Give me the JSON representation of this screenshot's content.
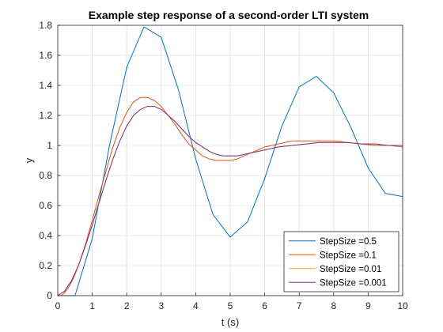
{
  "chart_data": {
    "type": "line",
    "title": "Example step response of a second-order LTI system",
    "xlabel": "t (s)",
    "ylabel": "y",
    "xlim": [
      0,
      10
    ],
    "ylim": [
      0,
      1.8
    ],
    "xticks": [
      "0",
      "1",
      "2",
      "3",
      "4",
      "5",
      "6",
      "7",
      "8",
      "9",
      "10"
    ],
    "yticks": [
      "0",
      "0.2",
      "0.4",
      "0.6",
      "0.8",
      "1",
      "1.2",
      "1.4",
      "1.6",
      "1.8"
    ],
    "grid": true,
    "legend_position": "bottom-right",
    "series": [
      {
        "name": "StepSize =0.5",
        "color": "#0072BD",
        "x": [
          0,
          0.5,
          1,
          1.5,
          2,
          2.5,
          3,
          3.5,
          4,
          4.5,
          5,
          5.5,
          6,
          6.5,
          7,
          7.5,
          8,
          8.5,
          9,
          9.5,
          10
        ],
        "y": [
          0,
          0,
          0.38,
          1.0,
          1.52,
          1.79,
          1.72,
          1.37,
          0.91,
          0.54,
          0.39,
          0.49,
          0.78,
          1.13,
          1.39,
          1.46,
          1.35,
          1.12,
          0.85,
          0.68,
          0.66
        ]
      },
      {
        "name": "StepSize =0.1",
        "color": "#D95319",
        "x": [
          0,
          0.1,
          0.2,
          0.3,
          0.4,
          0.5,
          0.6,
          0.7,
          0.8,
          0.9,
          1.0,
          1.2,
          1.4,
          1.6,
          1.8,
          2.0,
          2.2,
          2.4,
          2.6,
          2.8,
          3.0,
          3.2,
          3.4,
          3.6,
          3.8,
          4.0,
          4.2,
          4.4,
          4.6,
          4.8,
          5.0,
          5.2,
          5.4,
          5.6,
          5.8,
          6.0,
          6.4,
          6.8,
          7.2,
          7.6,
          8.0,
          8.4,
          8.8,
          9.2,
          9.6,
          10.0
        ],
        "y": [
          0,
          0,
          0.02,
          0.05,
          0.09,
          0.14,
          0.2,
          0.27,
          0.34,
          0.42,
          0.5,
          0.67,
          0.83,
          0.99,
          1.12,
          1.22,
          1.29,
          1.32,
          1.32,
          1.3,
          1.26,
          1.2,
          1.14,
          1.07,
          1.01,
          0.97,
          0.93,
          0.91,
          0.9,
          0.9,
          0.9,
          0.91,
          0.93,
          0.95,
          0.97,
          0.99,
          1.01,
          1.03,
          1.03,
          1.03,
          1.03,
          1.02,
          1.01,
          1.0,
          1.0,
          0.99
        ]
      },
      {
        "name": "StepSize =0.01",
        "color": "#EDB120",
        "x": [
          0,
          0.2,
          0.4,
          0.6,
          0.8,
          1.0,
          1.2,
          1.4,
          1.6,
          1.8,
          2.0,
          2.2,
          2.4,
          2.6,
          2.8,
          3.0,
          3.2,
          3.4,
          3.6,
          3.8,
          4.0,
          4.2,
          4.4,
          4.6,
          4.8,
          5.0,
          5.2,
          5.4,
          5.6,
          5.8,
          6.0,
          6.4,
          6.8,
          7.2,
          7.6,
          8.0,
          8.4,
          8.8,
          9.2,
          9.6,
          10.0
        ],
        "y": [
          0,
          0.03,
          0.1,
          0.2,
          0.33,
          0.47,
          0.62,
          0.77,
          0.91,
          1.03,
          1.13,
          1.2,
          1.24,
          1.26,
          1.26,
          1.24,
          1.2,
          1.16,
          1.11,
          1.06,
          1.02,
          0.99,
          0.96,
          0.94,
          0.93,
          0.93,
          0.93,
          0.94,
          0.95,
          0.96,
          0.97,
          0.99,
          1.0,
          1.01,
          1.02,
          1.02,
          1.02,
          1.01,
          1.01,
          1.0,
          1.0
        ]
      },
      {
        "name": "StepSize =0.001",
        "color": "#7E2F8E",
        "x": [
          0,
          0.2,
          0.4,
          0.6,
          0.8,
          1.0,
          1.2,
          1.4,
          1.6,
          1.8,
          2.0,
          2.2,
          2.4,
          2.6,
          2.8,
          3.0,
          3.2,
          3.4,
          3.6,
          3.8,
          4.0,
          4.2,
          4.4,
          4.6,
          4.8,
          5.0,
          5.2,
          5.4,
          5.6,
          5.8,
          6.0,
          6.4,
          6.8,
          7.2,
          7.6,
          8.0,
          8.4,
          8.8,
          9.2,
          9.6,
          10.0
        ],
        "y": [
          0,
          0.03,
          0.1,
          0.2,
          0.33,
          0.47,
          0.62,
          0.77,
          0.91,
          1.03,
          1.13,
          1.2,
          1.24,
          1.26,
          1.26,
          1.24,
          1.2,
          1.16,
          1.11,
          1.06,
          1.02,
          0.99,
          0.96,
          0.94,
          0.93,
          0.93,
          0.93,
          0.94,
          0.95,
          0.96,
          0.97,
          0.99,
          1.0,
          1.01,
          1.02,
          1.02,
          1.02,
          1.01,
          1.01,
          1.0,
          1.0
        ]
      }
    ]
  }
}
